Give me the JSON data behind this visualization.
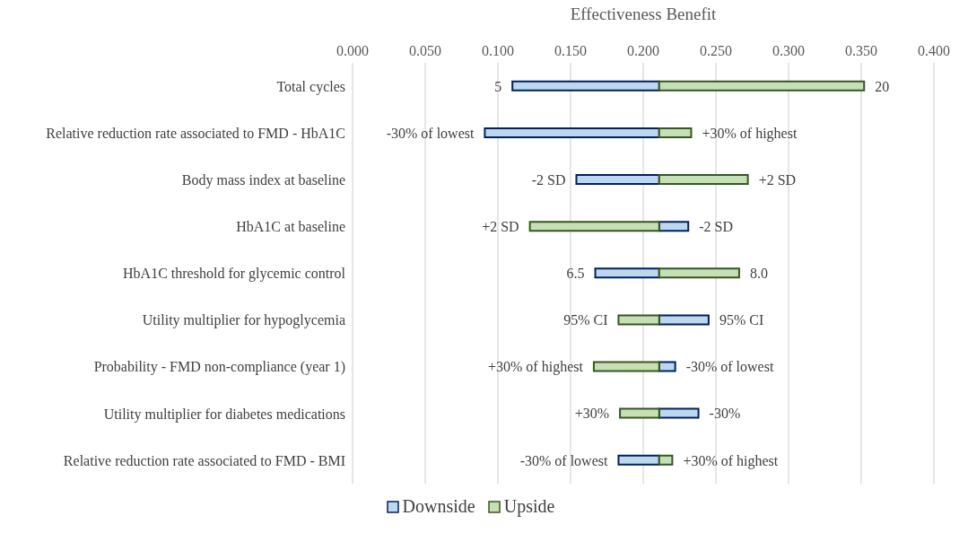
{
  "chart_data": {
    "type": "bar",
    "orientation": "horizontal",
    "xlabel": "Effectiveness Benefit",
    "categories": [
      "Total cycles",
      "Relative reduction rate associated to FMD - HbA1C",
      "Body mass index at baseline",
      "HbA1C at baseline",
      "HbA1C threshold for glycemic control",
      "Utility multiplier for hypoglycemia",
      "Probability - FMD non-compliance (year 1)",
      "Utility multiplier for diabetes medications",
      "Relative reduction rate associated to FMD - BMI"
    ],
    "series": [
      {
        "name": "Downside",
        "color": "#bdd7ee",
        "base": [
          0.11,
          0.091,
          0.154,
          0.211,
          0.167,
          0.211,
          0.211,
          0.211,
          0.183
        ],
        "values": [
          0.101,
          0.12,
          0.057,
          0.02,
          0.044,
          0.034,
          0.011,
          0.027,
          0.028
        ]
      },
      {
        "name": "Upside",
        "color": "#c5e0b4",
        "base": [
          0.211,
          0.211,
          0.211,
          0.122,
          0.211,
          0.183,
          0.166,
          0.184,
          0.211
        ],
        "values": [
          0.141,
          0.022,
          0.061,
          0.089,
          0.055,
          0.028,
          0.045,
          0.027,
          0.009
        ]
      }
    ],
    "annotations": [
      {
        "text": "5",
        "x": 0.11,
        "y": "Total cycles"
      },
      {
        "text": "20",
        "x": 0.352,
        "y": "Total cycles"
      },
      {
        "text": "-30% of lowest",
        "x": 0.091,
        "y": "Relative reduction rate associated to FMD - HbA1C"
      },
      {
        "text": "+30% of highest",
        "x": 0.233,
        "y": "Relative reduction rate associated to FMD - HbA1C"
      },
      {
        "text": "-2 SD",
        "x": 0.154,
        "y": "Body mass index at baseline"
      },
      {
        "text": "+2 SD",
        "x": 0.272,
        "y": "Body mass index at baseline"
      },
      {
        "text": "+2 SD",
        "x": 0.122,
        "y": "HbA1C at baseline"
      },
      {
        "text": "-2 SD",
        "x": 0.231,
        "y": "HbA1C at baseline"
      },
      {
        "text": "6.5",
        "x": 0.167,
        "y": "HbA1C threshold for glycemic control"
      },
      {
        "text": "8.0",
        "x": 0.266,
        "y": "HbA1C threshold for glycemic control"
      },
      {
        "text": "95% CI",
        "x": 0.183,
        "y": "Utility multiplier for hypoglycemia"
      },
      {
        "text": "95% CI",
        "x": 0.245,
        "y": "Utility multiplier for hypoglycemia"
      },
      {
        "text": "+30% of highest",
        "x": 0.166,
        "y": "Probability - FMD non-compliance (year 1)"
      },
      {
        "text": "-30% of lowest",
        "x": 0.222,
        "y": "Probability - FMD non-compliance (year 1)"
      },
      {
        "text": "+30%",
        "x": 0.184,
        "y": "Utility multiplier for diabetes medications"
      },
      {
        "text": "-30%",
        "x": 0.238,
        "y": "Utility multiplier for diabetes medications"
      },
      {
        "text": "-30% of lowest",
        "x": 0.183,
        "y": "Relative reduction rate associated to FMD - BMI"
      },
      {
        "text": "+30% of highest",
        "x": 0.22,
        "y": "Relative reduction rate associated to FMD - BMI"
      }
    ],
    "xlim": [
      0,
      0.4
    ],
    "xticks": [
      {
        "value": 0,
        "label": "0.000"
      },
      {
        "value": 0.05,
        "label": "0.050"
      },
      {
        "value": 0.1,
        "label": "0.100"
      },
      {
        "value": 0.15,
        "label": "0.150"
      },
      {
        "value": 0.2,
        "label": "0.200"
      },
      {
        "value": 0.25,
        "label": "0.250"
      },
      {
        "value": 0.3,
        "label": "0.300"
      },
      {
        "value": 0.35,
        "label": "0.350"
      },
      {
        "value": 0.4,
        "label": "0.400"
      }
    ],
    "grid": "x",
    "legend": "bottom"
  }
}
